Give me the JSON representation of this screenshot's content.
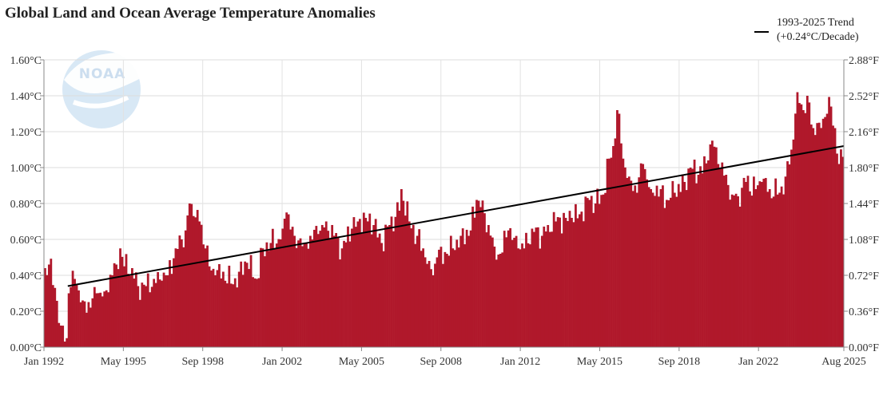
{
  "chart_data": {
    "type": "bar",
    "title": "Global Land and Ocean Average Temperature Anomalies",
    "units": "°C",
    "ylim": [
      0.0,
      1.6
    ],
    "y_right_lim": [
      0.0,
      2.88
    ],
    "grid": true,
    "legend_position": "top-right",
    "bar_color": "#b0182b",
    "trend_color": "#000000",
    "y_ticks_left": [
      "0.00°C",
      "0.20°C",
      "0.40°C",
      "0.60°C",
      "0.80°C",
      "1.00°C",
      "1.20°C",
      "1.40°C",
      "1.60°C"
    ],
    "y_ticks_right": [
      "0.00°F",
      "0.36°F",
      "0.72°F",
      "1.08°F",
      "1.44°F",
      "1.80°F",
      "2.16°F",
      "2.52°F",
      "2.88°F"
    ],
    "x_ticks": [
      "Jan 1992",
      "May 1995",
      "Sep 1998",
      "Jan 2002",
      "May 2005",
      "Sep 2008",
      "Jan 2012",
      "May 2015",
      "Sep 2018",
      "Jan 2022",
      "Aug 2025"
    ],
    "x_start": "Jan 1992",
    "x_end": "Aug 2025",
    "trend": {
      "label_line1": "1993-2025 Trend",
      "label_line2": "(+0.24°C/Decade)",
      "start": {
        "month": "Jan 1993",
        "value": 0.34
      },
      "end": {
        "month": "Aug 2025",
        "value": 1.12
      }
    },
    "anchors": [
      [
        "1992-01",
        0.44
      ],
      [
        "1992-03",
        0.46
      ],
      [
        "1992-06",
        0.33
      ],
      [
        "1992-09",
        0.12
      ],
      [
        "1992-12",
        0.05
      ],
      [
        "1993-01",
        0.3
      ],
      [
        "1993-04",
        0.38
      ],
      [
        "1993-08",
        0.26
      ],
      [
        "1993-12",
        0.22
      ],
      [
        "1994-03",
        0.3
      ],
      [
        "1994-07",
        0.31
      ],
      [
        "1994-11",
        0.4
      ],
      [
        "1995-01",
        0.46
      ],
      [
        "1995-03",
        0.55
      ],
      [
        "1995-05",
        0.45
      ],
      [
        "1995-09",
        0.44
      ],
      [
        "1995-12",
        0.34
      ],
      [
        "1996-04",
        0.34
      ],
      [
        "1996-08",
        0.38
      ],
      [
        "1996-12",
        0.37
      ],
      [
        "1997-03",
        0.4
      ],
      [
        "1997-07",
        0.55
      ],
      [
        "1997-10",
        0.6
      ],
      [
        "1997-12",
        0.65
      ],
      [
        "1998-02",
        0.8
      ],
      [
        "1998-04",
        0.73
      ],
      [
        "1998-07",
        0.7
      ],
      [
        "1998-10",
        0.55
      ],
      [
        "1998-12",
        0.45
      ],
      [
        "1999-03",
        0.4
      ],
      [
        "1999-07",
        0.42
      ],
      [
        "1999-12",
        0.35
      ],
      [
        "2000-03",
        0.42
      ],
      [
        "2000-07",
        0.47
      ],
      [
        "2000-12",
        0.38
      ],
      [
        "2001-03",
        0.55
      ],
      [
        "2001-07",
        0.58
      ],
      [
        "2001-12",
        0.6
      ],
      [
        "2002-01",
        0.66
      ],
      [
        "2002-03",
        0.75
      ],
      [
        "2002-07",
        0.62
      ],
      [
        "2002-12",
        0.58
      ],
      [
        "2003-03",
        0.62
      ],
      [
        "2003-07",
        0.63
      ],
      [
        "2003-11",
        0.7
      ],
      [
        "2004-03",
        0.62
      ],
      [
        "2004-07",
        0.55
      ],
      [
        "2004-12",
        0.66
      ],
      [
        "2005-03",
        0.7
      ],
      [
        "2005-07",
        0.72
      ],
      [
        "2005-11",
        0.68
      ],
      [
        "2006-03",
        0.58
      ],
      [
        "2006-07",
        0.68
      ],
      [
        "2006-12",
        0.76
      ],
      [
        "2007-01",
        0.88
      ],
      [
        "2007-05",
        0.7
      ],
      [
        "2007-09",
        0.62
      ],
      [
        "2007-12",
        0.55
      ],
      [
        "2008-03",
        0.48
      ],
      [
        "2008-05",
        0.4
      ],
      [
        "2008-07",
        0.5
      ],
      [
        "2008-12",
        0.52
      ],
      [
        "2009-03",
        0.55
      ],
      [
        "2009-07",
        0.62
      ],
      [
        "2009-12",
        0.65
      ],
      [
        "2010-03",
        0.82
      ],
      [
        "2010-05",
        0.78
      ],
      [
        "2010-09",
        0.68
      ],
      [
        "2010-12",
        0.56
      ],
      [
        "2011-03",
        0.52
      ],
      [
        "2011-07",
        0.65
      ],
      [
        "2011-12",
        0.55
      ],
      [
        "2012-03",
        0.55
      ],
      [
        "2012-07",
        0.66
      ],
      [
        "2012-12",
        0.62
      ],
      [
        "2013-03",
        0.68
      ],
      [
        "2013-07",
        0.7
      ],
      [
        "2013-12",
        0.72
      ],
      [
        "2014-03",
        0.72
      ],
      [
        "2014-07",
        0.74
      ],
      [
        "2014-12",
        0.82
      ],
      [
        "2015-03",
        0.8
      ],
      [
        "2015-07",
        0.85
      ],
      [
        "2015-10",
        1.05
      ],
      [
        "2015-12",
        1.12
      ],
      [
        "2016-02",
        1.32
      ],
      [
        "2016-03",
        1.3
      ],
      [
        "2016-05",
        1.05
      ],
      [
        "2016-08",
        0.95
      ],
      [
        "2016-12",
        0.86
      ],
      [
        "2017-03",
        1.02
      ],
      [
        "2017-07",
        0.88
      ],
      [
        "2017-12",
        0.88
      ],
      [
        "2018-03",
        0.82
      ],
      [
        "2018-07",
        0.86
      ],
      [
        "2018-12",
        0.92
      ],
      [
        "2019-03",
        1.0
      ],
      [
        "2019-07",
        0.96
      ],
      [
        "2019-12",
        1.04
      ],
      [
        "2020-02",
        1.15
      ],
      [
        "2020-05",
        1.02
      ],
      [
        "2020-09",
        0.96
      ],
      [
        "2020-12",
        0.85
      ],
      [
        "2021-03",
        0.84
      ],
      [
        "2021-07",
        0.92
      ],
      [
        "2021-12",
        0.88
      ],
      [
        "2022-03",
        0.92
      ],
      [
        "2022-07",
        0.88
      ],
      [
        "2022-12",
        0.86
      ],
      [
        "2023-03",
        0.95
      ],
      [
        "2023-06",
        1.1
      ],
      [
        "2023-09",
        1.42
      ],
      [
        "2023-12",
        1.32
      ],
      [
        "2024-02",
        1.4
      ],
      [
        "2024-05",
        1.22
      ],
      [
        "2024-08",
        1.25
      ],
      [
        "2024-12",
        1.3
      ],
      [
        "2025-02",
        1.34
      ],
      [
        "2025-04",
        1.22
      ],
      [
        "2025-06",
        1.02
      ],
      [
        "2025-08",
        1.06
      ]
    ]
  }
}
